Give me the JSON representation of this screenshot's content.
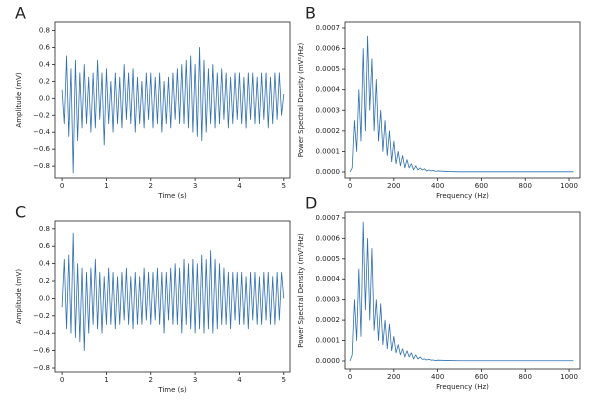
{
  "chart_data": [
    {
      "type": "line",
      "panel_label": "A",
      "x_label": "Time (s)",
      "y_label": "Amplitude (mV)",
      "color": "#2f6fb0",
      "x": [
        0,
        0.05,
        0.1,
        0.15,
        0.2,
        0.25,
        0.3,
        0.35,
        0.4,
        0.45,
        0.5,
        0.55,
        0.6,
        0.65,
        0.7,
        0.75,
        0.8,
        0.85,
        0.9,
        0.95,
        1,
        1.05,
        1.1,
        1.15,
        1.2,
        1.25,
        1.3,
        1.35,
        1.4,
        1.45,
        1.5,
        1.55,
        1.6,
        1.65,
        1.7,
        1.75,
        1.8,
        1.85,
        1.9,
        1.95,
        2,
        2.05,
        2.1,
        2.15,
        2.2,
        2.25,
        2.3,
        2.35,
        2.4,
        2.45,
        2.5,
        2.55,
        2.6,
        2.65,
        2.7,
        2.75,
        2.8,
        2.85,
        2.9,
        2.95,
        3,
        3.05,
        3.1,
        3.15,
        3.2,
        3.25,
        3.3,
        3.35,
        3.4,
        3.45,
        3.5,
        3.55,
        3.6,
        3.65,
        3.7,
        3.75,
        3.8,
        3.85,
        3.9,
        3.95,
        4,
        4.05,
        4.1,
        4.15,
        4.2,
        4.25,
        4.3,
        4.35,
        4.4,
        4.45,
        4.5,
        4.55,
        4.6,
        4.65,
        4.7,
        4.75,
        4.8,
        4.85,
        4.9,
        4.95,
        5
      ],
      "values": [
        0.1,
        -0.3,
        0.5,
        -0.45,
        0.35,
        -0.88,
        0.45,
        -0.5,
        0.3,
        -0.35,
        0.4,
        -0.3,
        0.25,
        -0.4,
        0.3,
        -0.35,
        0.45,
        -0.25,
        0.3,
        -0.55,
        0.35,
        -0.3,
        0.2,
        -0.4,
        0.3,
        -0.3,
        0.25,
        -0.35,
        0.4,
        -0.25,
        0.3,
        -0.3,
        0.35,
        -0.4,
        0.25,
        -0.3,
        0.2,
        -0.35,
        0.3,
        -0.25,
        0.3,
        -0.35,
        0.25,
        -0.3,
        0.3,
        -0.4,
        0.2,
        -0.3,
        0.25,
        -0.35,
        0.3,
        -0.25,
        0.35,
        -0.3,
        0.4,
        -0.3,
        0.45,
        -0.35,
        0.5,
        -0.4,
        0.4,
        -0.45,
        0.6,
        -0.5,
        0.45,
        -0.4,
        0.35,
        -0.3,
        0.4,
        -0.35,
        0.3,
        -0.3,
        0.35,
        -0.25,
        0.3,
        -0.35,
        0.25,
        -0.3,
        0.3,
        -0.25,
        0.3,
        -0.3,
        0.25,
        -0.35,
        0.3,
        -0.25,
        0.3,
        -0.3,
        0.25,
        -0.3,
        0.3,
        -0.25,
        0.3,
        -0.35,
        0.25,
        -0.3,
        0.3,
        -0.25,
        0.3,
        -0.2,
        0.05
      ],
      "xlim": [
        -0.16,
        5.14
      ],
      "ylim": [
        -0.94,
        0.9
      ],
      "xticks": [
        0,
        1,
        2,
        3,
        4,
        5
      ],
      "yticks": [
        {
          "value": -0.8,
          "label": "−0.8"
        },
        {
          "value": -0.6,
          "label": "−0.6"
        },
        {
          "value": -0.4,
          "label": "−0.4"
        },
        {
          "value": -0.2,
          "label": "−0.2"
        },
        {
          "value": 0,
          "label": "0.0"
        },
        0.2,
        0.4,
        0.6,
        0.8
      ]
    },
    {
      "type": "line",
      "panel_label": "B",
      "x_label": "Frequency (Hz)",
      "y_label": "Power Spectral Density (mV²/Hz)",
      "color": "#2f6fb0",
      "x": [
        0,
        10,
        20,
        30,
        40,
        50,
        60,
        70,
        80,
        90,
        100,
        110,
        120,
        130,
        140,
        150,
        160,
        170,
        180,
        190,
        200,
        210,
        220,
        230,
        240,
        250,
        260,
        270,
        280,
        290,
        300,
        310,
        320,
        330,
        340,
        350,
        360,
        370,
        380,
        390,
        400,
        450,
        500,
        550,
        600,
        650,
        700,
        750,
        800,
        850,
        900,
        950,
        1000,
        1020
      ],
      "values": [
        0,
        2e-05,
        0.00025,
        0.0001,
        0.0004,
        0.00015,
        0.0006,
        0.0002,
        0.00066,
        0.0003,
        0.00055,
        0.0002,
        0.00045,
        0.00015,
        0.0003,
        0.0001,
        0.00025,
        8e-05,
        0.0002,
        5e-05,
        0.00015,
        4e-05,
        0.0001,
        3e-05,
        8e-05,
        2e-05,
        6e-05,
        2e-05,
        4e-05,
        1e-05,
        3e-05,
        1e-05,
        2e-05,
        1e-05,
        1.5e-05,
        5e-06,
        1e-05,
        5e-06,
        8e-06,
        3e-06,
        5e-06,
        2e-06,
        1e-06,
        1e-06,
        1e-06,
        1e-06,
        1e-06,
        1e-06,
        1e-06,
        1e-06,
        1e-06,
        1e-06,
        1e-06,
        1e-06
      ],
      "xlim": [
        -23,
        1050
      ],
      "ylim": [
        -2.92e-05,
        0.000729
      ],
      "xticks": [
        0,
        200,
        400,
        600,
        800,
        1000
      ],
      "yticks": [
        {
          "value": 0,
          "label": "0.0000"
        },
        0.0001,
        0.0002,
        0.0003,
        0.0004,
        0.0005,
        0.0006,
        0.0007
      ]
    },
    {
      "type": "line",
      "panel_label": "C",
      "x_label": "Time (s)",
      "y_label": "Amplitude (mV)",
      "color": "#2f6fb0",
      "x": [
        0,
        0.05,
        0.1,
        0.15,
        0.2,
        0.25,
        0.3,
        0.35,
        0.4,
        0.45,
        0.5,
        0.55,
        0.6,
        0.65,
        0.7,
        0.75,
        0.8,
        0.85,
        0.9,
        0.95,
        1,
        1.05,
        1.1,
        1.15,
        1.2,
        1.25,
        1.3,
        1.35,
        1.4,
        1.45,
        1.5,
        1.55,
        1.6,
        1.65,
        1.7,
        1.75,
        1.8,
        1.85,
        1.9,
        1.95,
        2,
        2.05,
        2.1,
        2.15,
        2.2,
        2.25,
        2.3,
        2.35,
        2.4,
        2.45,
        2.5,
        2.55,
        2.6,
        2.65,
        2.7,
        2.75,
        2.8,
        2.85,
        2.9,
        2.95,
        3,
        3.05,
        3.1,
        3.15,
        3.2,
        3.25,
        3.3,
        3.35,
        3.4,
        3.45,
        3.5,
        3.55,
        3.6,
        3.65,
        3.7,
        3.75,
        3.8,
        3.85,
        3.9,
        3.95,
        4,
        4.05,
        4.1,
        4.15,
        4.2,
        4.25,
        4.3,
        4.35,
        4.4,
        4.45,
        4.5,
        4.55,
        4.6,
        4.65,
        4.7,
        4.75,
        4.8,
        4.85,
        4.9,
        4.95,
        5
      ],
      "values": [
        -0.1,
        0.45,
        -0.35,
        0.5,
        -0.4,
        0.75,
        -0.45,
        0.4,
        -0.5,
        0.35,
        -0.6,
        0.3,
        -0.4,
        0.35,
        -0.3,
        0.45,
        -0.35,
        0.3,
        -0.4,
        0.25,
        -0.3,
        0.35,
        -0.3,
        0.3,
        -0.35,
        0.25,
        -0.3,
        0.3,
        -0.25,
        0.35,
        -0.3,
        0.25,
        -0.35,
        0.3,
        -0.3,
        0.25,
        -0.3,
        0.35,
        -0.25,
        0.3,
        -0.3,
        0.3,
        -0.25,
        0.35,
        -0.3,
        0.3,
        -0.4,
        0.3,
        -0.25,
        0.35,
        -0.3,
        0.4,
        -0.3,
        0.35,
        -0.4,
        0.45,
        -0.3,
        0.4,
        -0.35,
        0.45,
        -0.4,
        0.4,
        -0.35,
        0.5,
        -0.4,
        0.45,
        -0.35,
        0.55,
        -0.4,
        0.45,
        -0.35,
        0.4,
        -0.3,
        0.35,
        -0.3,
        0.3,
        -0.35,
        0.3,
        -0.25,
        0.3,
        -0.3,
        0.3,
        -0.3,
        0.25,
        -0.35,
        0.3,
        -0.25,
        0.3,
        -0.3,
        0.25,
        -0.3,
        0.3,
        -0.25,
        0.3,
        -0.3,
        0.25,
        -0.3,
        0.3,
        -0.25,
        0.3,
        0
      ],
      "xlim": [
        -0.16,
        5.14
      ],
      "ylim": [
        -0.846,
        0.89
      ],
      "xticks": [
        0,
        1,
        2,
        3,
        4,
        5
      ],
      "yticks": [
        {
          "value": -0.8,
          "label": "−0.8"
        },
        {
          "value": -0.6,
          "label": "−0.6"
        },
        {
          "value": -0.4,
          "label": "−0.4"
        },
        {
          "value": -0.2,
          "label": "−0.2"
        },
        {
          "value": 0,
          "label": "0.0"
        },
        0.2,
        0.4,
        0.6,
        0.8
      ]
    },
    {
      "type": "line",
      "panel_label": "D",
      "x_label": "Frequency (Hz)",
      "y_label": "Power Spectral Density (mV²/Hz)",
      "color": "#2f6fb0",
      "x": [
        0,
        10,
        20,
        30,
        40,
        50,
        60,
        70,
        80,
        90,
        100,
        110,
        120,
        130,
        140,
        150,
        160,
        170,
        180,
        190,
        200,
        210,
        220,
        230,
        240,
        250,
        260,
        270,
        280,
        290,
        300,
        310,
        320,
        330,
        340,
        350,
        360,
        370,
        380,
        390,
        400,
        450,
        500,
        550,
        600,
        650,
        700,
        750,
        800,
        850,
        900,
        950,
        1000,
        1020
      ],
      "values": [
        0,
        3e-05,
        0.0003,
        0.0001,
        0.00045,
        0.00012,
        0.00068,
        0.00025,
        0.0006,
        0.0002,
        0.00055,
        0.00015,
        0.0003,
        0.0001,
        0.00028,
        8e-05,
        0.0002,
        6e-05,
        0.00018,
        5e-05,
        0.00012,
        4e-05,
        8e-05,
        3e-05,
        6e-05,
        2e-05,
        5e-05,
        2e-05,
        4e-05,
        1e-05,
        3e-05,
        1e-05,
        2e-05,
        8e-06,
        1e-05,
        5e-06,
        8e-06,
        4e-06,
        5e-06,
        2e-06,
        4e-06,
        2e-06,
        1e-06,
        1e-06,
        1e-06,
        1e-06,
        1e-06,
        1e-06,
        1e-06,
        1e-06,
        1e-06,
        1e-06,
        1e-06,
        1e-06
      ],
      "xlim": [
        -23,
        1050
      ],
      "ylim": [
        -3.92e-05,
        0.000729
      ],
      "xticks": [
        0,
        200,
        400,
        600,
        800,
        1000
      ],
      "yticks": [
        {
          "value": 0,
          "label": "0.0000"
        },
        0.0001,
        0.0002,
        0.0003,
        0.0004,
        0.0005,
        0.0006,
        0.0007
      ]
    }
  ]
}
